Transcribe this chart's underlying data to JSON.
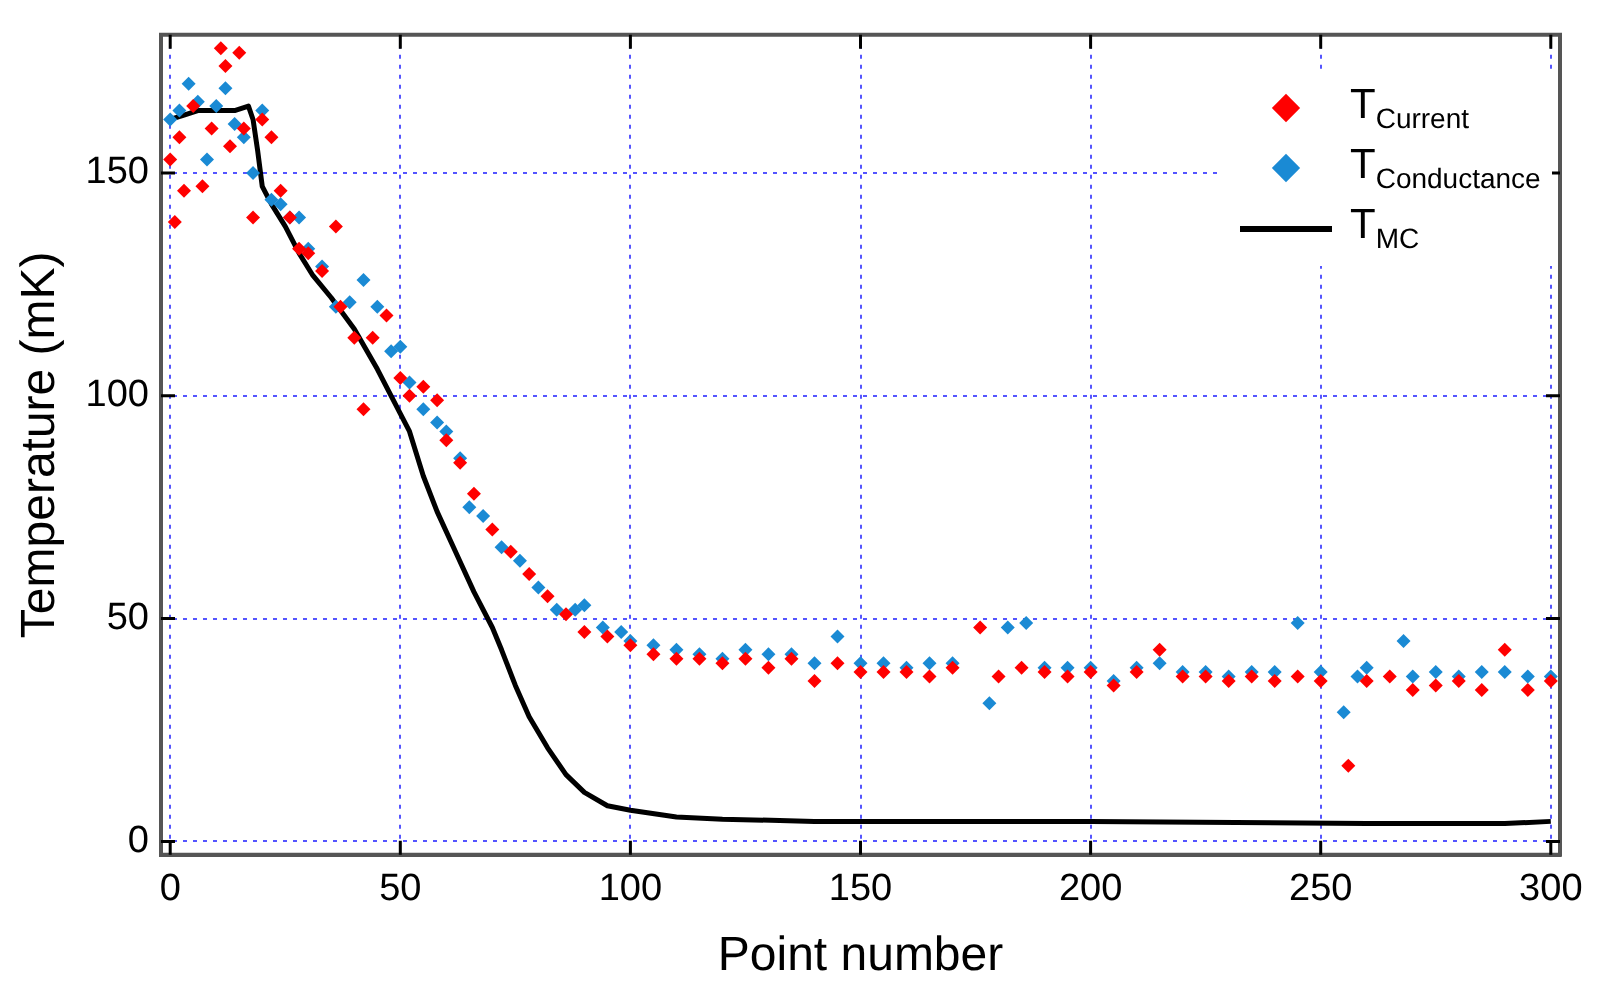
{
  "chart_data": {
    "type": "scatter",
    "xlabel": "Point number",
    "ylabel": "Temperature (mK)",
    "xlim": [
      -2,
      302
    ],
    "ylim": [
      -3,
      181
    ],
    "xticks": [
      0,
      50,
      100,
      150,
      200,
      250,
      300
    ],
    "yticks": [
      0,
      50,
      100,
      150
    ],
    "grid": true,
    "legend": "top right",
    "marker": "diamond",
    "series": [
      {
        "name": "T$_{Current}$",
        "color": "#ff0000",
        "x": [
          0,
          1,
          2,
          3,
          5,
          7,
          9,
          11,
          12,
          13,
          15,
          16,
          18,
          20,
          22,
          24,
          26,
          28,
          30,
          33,
          36,
          37,
          40,
          42,
          44,
          47,
          50,
          52,
          55,
          58,
          60,
          63,
          66,
          70,
          74,
          78,
          82,
          86,
          90,
          95,
          100,
          105,
          110,
          115,
          120,
          125,
          130,
          135,
          140,
          145,
          150,
          155,
          160,
          165,
          170,
          176,
          180,
          185,
          190,
          195,
          200,
          205,
          210,
          215,
          220,
          225,
          230,
          235,
          240,
          245,
          250,
          256,
          260,
          265,
          270,
          275,
          280,
          285,
          290,
          295,
          300
        ],
        "values": [
          153,
          139,
          158,
          146,
          165,
          147,
          160,
          178,
          174,
          156,
          177,
          160,
          140,
          162,
          158,
          146,
          140,
          133,
          132,
          128,
          138,
          120,
          113,
          97,
          113,
          118,
          104,
          100,
          102,
          99,
          90,
          85,
          78,
          70,
          65,
          60,
          55,
          51,
          47,
          46,
          44,
          42,
          41,
          41,
          40,
          41,
          39,
          41,
          36,
          40,
          38,
          38,
          38,
          37,
          39,
          48,
          37,
          39,
          38,
          37,
          38,
          35,
          38,
          43,
          37,
          37,
          36,
          37,
          36,
          37,
          36,
          17,
          36,
          37,
          34,
          35,
          36,
          34,
          43,
          34,
          36
        ]
      },
      {
        "name": "T$_{Conductance}$",
        "color": "#1a8ad4",
        "x": [
          0,
          2,
          4,
          6,
          8,
          10,
          12,
          14,
          16,
          18,
          20,
          22,
          24,
          26,
          28,
          30,
          33,
          36,
          39,
          42,
          45,
          48,
          50,
          52,
          55,
          58,
          60,
          63,
          65,
          68,
          72,
          76,
          80,
          84,
          88,
          90,
          94,
          98,
          100,
          105,
          110,
          115,
          120,
          125,
          130,
          135,
          140,
          145,
          150,
          155,
          160,
          165,
          170,
          178,
          182,
          186,
          190,
          195,
          200,
          205,
          210,
          215,
          220,
          225,
          230,
          235,
          240,
          245,
          250,
          255,
          258,
          260,
          268,
          270,
          275,
          280,
          285,
          290,
          295,
          300
        ],
        "values": [
          162,
          164,
          170,
          166,
          153,
          165,
          169,
          161,
          158,
          150,
          164,
          144,
          143,
          140,
          140,
          133,
          129,
          120,
          121,
          126,
          120,
          110,
          111,
          103,
          97,
          94,
          92,
          86,
          75,
          73,
          66,
          63,
          57,
          52,
          52,
          53,
          48,
          47,
          45,
          44,
          43,
          42,
          41,
          43,
          42,
          42,
          40,
          46,
          40,
          40,
          39,
          40,
          40,
          31,
          48,
          49,
          39,
          39,
          39,
          36,
          39,
          40,
          38,
          38,
          37,
          38,
          38,
          49,
          38,
          29,
          37,
          39,
          45,
          37,
          38,
          37,
          38,
          38,
          37,
          37
        ]
      },
      {
        "name": "T$_{MC}$",
        "color": "#000000",
        "type": "line",
        "marker": "none",
        "x": [
          0,
          3,
          6,
          10,
          14,
          17,
          18,
          19,
          20,
          22,
          25,
          28,
          31,
          35,
          40,
          45,
          50,
          52,
          55,
          58,
          62,
          66,
          70,
          72,
          75,
          78,
          82,
          86,
          90,
          95,
          100,
          110,
          120,
          140,
          200,
          260,
          290,
          300
        ],
        "values": [
          162,
          163,
          164,
          164,
          164,
          165,
          162,
          155,
          147,
          143,
          138,
          132,
          127,
          122,
          115,
          106,
          96,
          92,
          82,
          74,
          65,
          56,
          48,
          43,
          35,
          28,
          21,
          15,
          11,
          8,
          7,
          5.5,
          5,
          4.5,
          4.5,
          4,
          4,
          4.5
        ]
      }
    ]
  }
}
